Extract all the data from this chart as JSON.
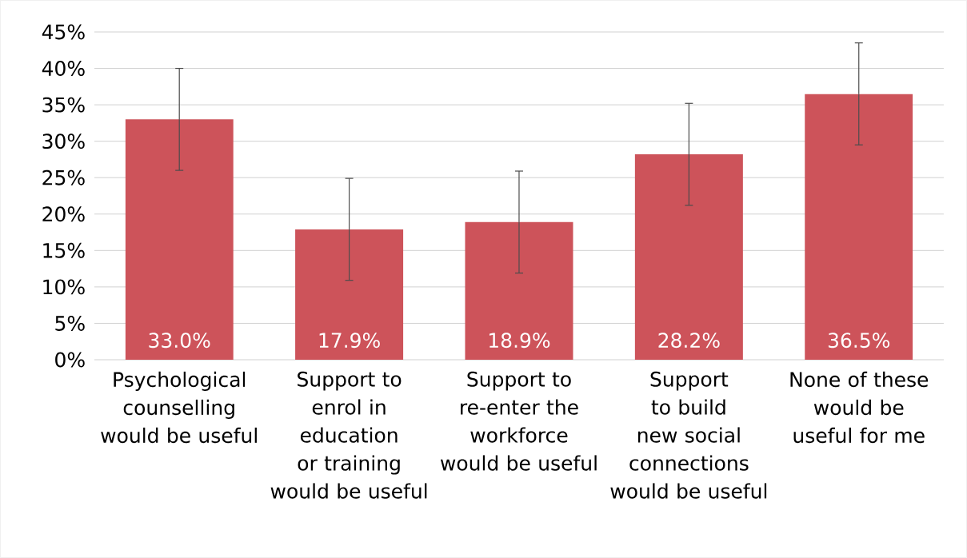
{
  "chart_data": {
    "type": "bar",
    "categories": [
      "Psychological counselling would be useful",
      "Support to enrol in education or training would be useful",
      "Support to re-enter the workforce would be useful",
      "Support to build new social connections would be useful",
      "None of these would be useful for me"
    ],
    "values": [
      33.0,
      17.9,
      18.9,
      28.2,
      36.5
    ],
    "errors": [
      7,
      7,
      7,
      7,
      7
    ],
    "value_labels": [
      "33.0%",
      "17.9%",
      "18.9%",
      "28.2%",
      "36.5%"
    ],
    "color": "#cd535a",
    "ylim": [
      0,
      45
    ],
    "yticks": [
      {
        "value": 0,
        "label": "0%"
      },
      {
        "value": 5,
        "label": "5%"
      },
      {
        "value": 10,
        "label": "10%"
      },
      {
        "value": 15,
        "label": "15%"
      },
      {
        "value": 20,
        "label": "20%"
      },
      {
        "value": 25,
        "label": "25%"
      },
      {
        "value": 30,
        "label": "30%"
      },
      {
        "value": 35,
        "label": "35%"
      },
      {
        "value": 40,
        "label": "40%"
      },
      {
        "value": 45,
        "label": "45%"
      }
    ],
    "grid": "y"
  }
}
